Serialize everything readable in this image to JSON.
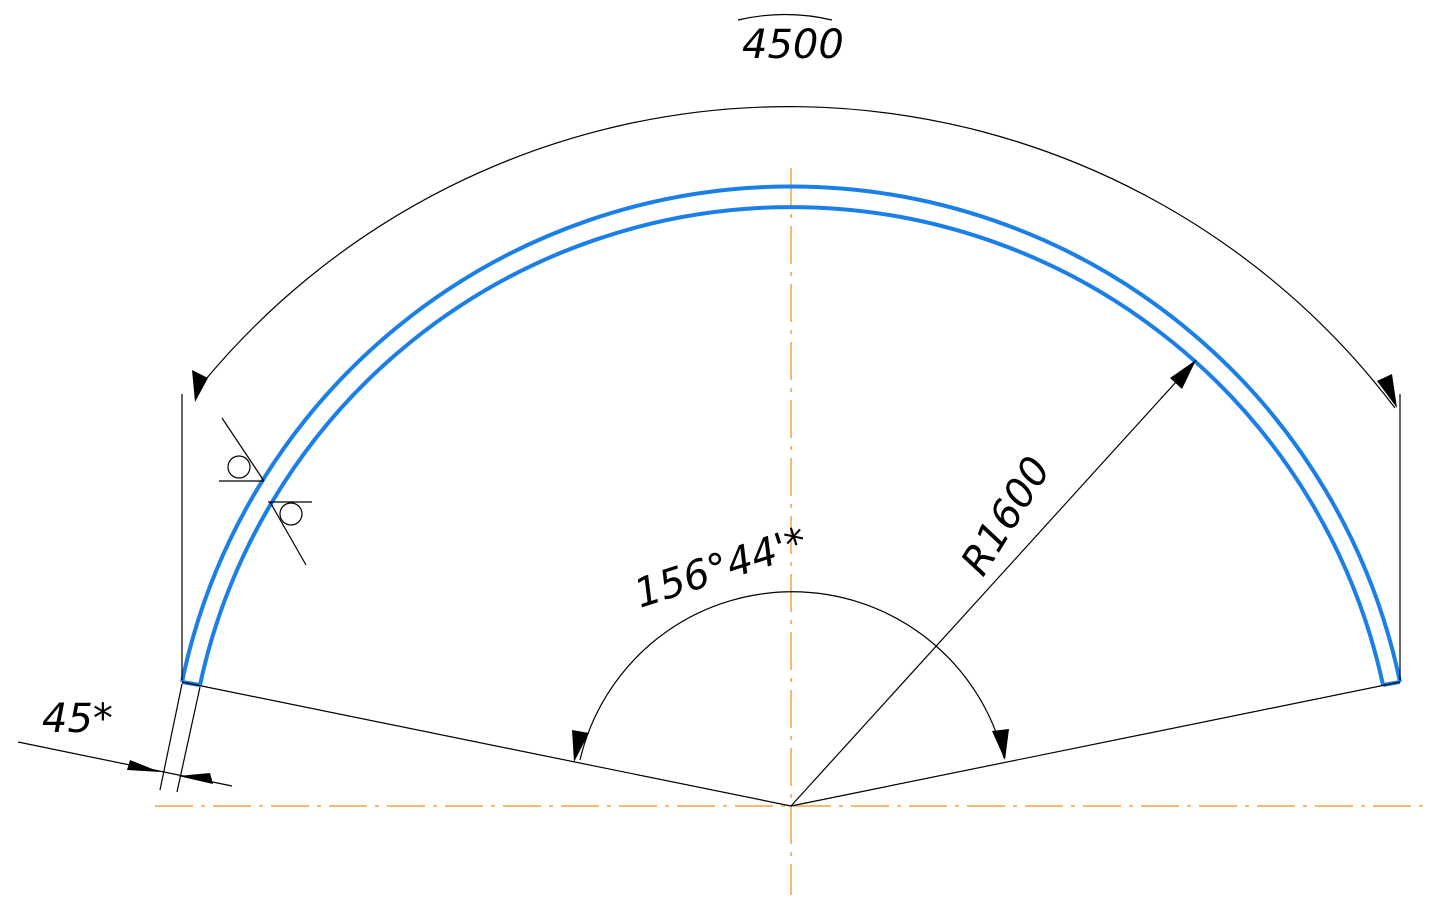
{
  "colors": {
    "background": "#ffffff",
    "part_outline": "#1a7fe8",
    "centerline": "#f5a040",
    "dimension": "#000000"
  },
  "annotations": {
    "arc_length": "4500",
    "angle": "156°44'*",
    "radius": "R1600",
    "thickness": "45*"
  },
  "symbols": {
    "surface_mark_1": "surface-finish-icon",
    "surface_mark_2": "surface-finish-icon"
  }
}
